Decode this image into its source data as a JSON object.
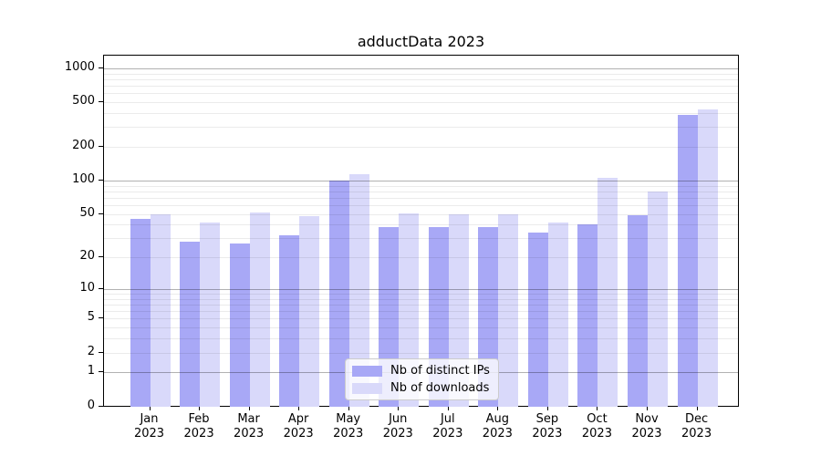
{
  "chart_data": {
    "type": "bar",
    "title": "adductData 2023",
    "categories": [
      "Jan 2023",
      "Feb 2023",
      "Mar 2023",
      "Apr 2023",
      "May 2023",
      "Jun 2023",
      "Jul 2023",
      "Aug 2023",
      "Sep 2023",
      "Oct 2023",
      "Nov 2023",
      "Dec 2023"
    ],
    "series": [
      {
        "name": "Nb of distinct IPs",
        "color": "#a8a8f6",
        "values": [
          45,
          28,
          27,
          32,
          100,
          38,
          38,
          38,
          34,
          40,
          49,
          385
        ]
      },
      {
        "name": "Nb of downloads",
        "color": "#d9d9fa",
        "values": [
          50,
          42,
          52,
          48,
          114,
          51,
          50,
          50,
          42,
          105,
          80,
          430
        ]
      }
    ],
    "xlabel": "",
    "ylabel": "",
    "y_scale": "log10(value+1)",
    "y_tick_labels": [
      0,
      1,
      2,
      5,
      10,
      20,
      50,
      100,
      200,
      500,
      1000
    ],
    "y_major_gridlines": [
      1,
      10,
      100,
      1000
    ],
    "y_minor_gridlines": [
      2,
      3,
      4,
      5,
      6,
      7,
      8,
      9,
      20,
      30,
      40,
      50,
      60,
      70,
      80,
      90,
      200,
      300,
      400,
      500,
      600,
      700,
      800,
      900
    ],
    "ylim": [
      0,
      1300
    ],
    "grid": true,
    "legend_position": "bottom-center"
  }
}
